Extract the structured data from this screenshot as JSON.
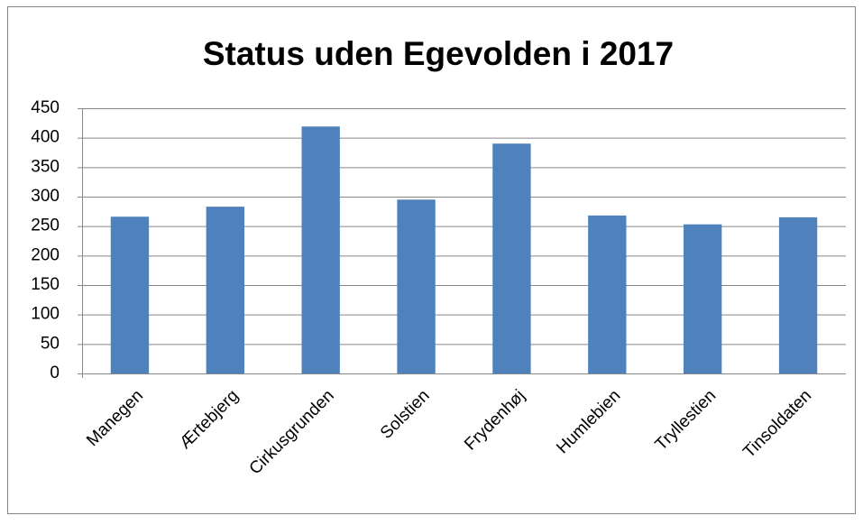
{
  "chart_data": {
    "type": "bar",
    "title": "Status uden Egevolden i 2017",
    "categories": [
      "Manegen",
      "Ærtebjerg",
      "Cirkusgrunden",
      "Solstien",
      "Frydenhøj",
      "Humlebien",
      "Tryllestien",
      "Tinsoldaten"
    ],
    "values": [
      266,
      283,
      419,
      295,
      390,
      268,
      253,
      265
    ],
    "color": "#4f81bd",
    "ylim": [
      0,
      450
    ],
    "yticks": [
      0,
      50,
      100,
      150,
      200,
      250,
      300,
      350,
      400,
      450
    ],
    "grid": true
  }
}
